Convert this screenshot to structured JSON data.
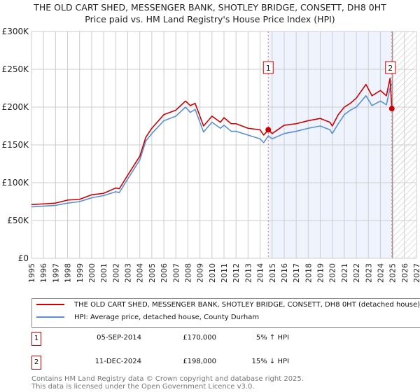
{
  "title_line1": "THE OLD CART SHED, MESSENGER BANK, SHOTLEY BRIDGE, CONSETT, DH8 0HT",
  "title_line2": "Price paid vs. HM Land Registry's House Price Index (HPI)",
  "chart_data": {
    "type": "line",
    "title": "THE OLD CART SHED, MESSENGER BANK, SHOTLEY BRIDGE, CONSETT, DH8 0HT - Price paid vs. HM Land Registry's House Price Index (HPI)",
    "xlim": [
      1995,
      2027
    ],
    "ylim": [
      0,
      300000
    ],
    "grid": true,
    "y_ticks": [
      0,
      50000,
      100000,
      150000,
      200000,
      250000,
      300000
    ],
    "y_tick_labels": [
      "£0",
      "£50K",
      "£100K",
      "£150K",
      "£200K",
      "£250K",
      "£300K"
    ],
    "x_ticks": [
      1995,
      1996,
      1997,
      1998,
      1999,
      2000,
      2001,
      2002,
      2003,
      2004,
      2005,
      2006,
      2007,
      2008,
      2009,
      2010,
      2011,
      2012,
      2013,
      2014,
      2015,
      2016,
      2017,
      2018,
      2019,
      2020,
      2021,
      2022,
      2023,
      2024,
      2025,
      2026,
      2027
    ],
    "x_tick_labels": [
      "1995",
      "1996",
      "1997",
      "1998",
      "1999",
      "2000",
      "2001",
      "2002",
      "2003",
      "2004",
      "2005",
      "2006",
      "2007",
      "2008",
      "2009",
      "2010",
      "2011",
      "2012",
      "2013",
      "2014",
      "2015",
      "2016",
      "2017",
      "2018",
      "2019",
      "2020",
      "2021",
      "2022",
      "2023",
      "2024",
      "2025",
      "2026",
      "2027"
    ],
    "series": [
      {
        "name": "THE OLD CART SHED, MESSENGER BANK, SHOTLEY BRIDGE, CONSETT, DH8 0HT (detached house)",
        "color": "#cc0000",
        "x": [
          1995,
          1996,
          1997,
          1998,
          1999,
          2000,
          2001,
          2002,
          2002.3,
          2003,
          2004,
          2004.5,
          2005,
          2006,
          2007,
          2007.8,
          2008.2,
          2008.6,
          2009.3,
          2010,
          2010.7,
          2011,
          2011.6,
          2012,
          2013,
          2014,
          2014.3,
          2014.68,
          2015,
          2016,
          2017,
          2018,
          2019,
          2019.8,
          2020,
          2020.5,
          2021,
          2021.5,
          2022,
          2022.8,
          2023.3,
          2024,
          2024.5,
          2024.8,
          2024.95
        ],
        "y": [
          71000,
          72000,
          73000,
          77000,
          78000,
          84000,
          86000,
          93000,
          92000,
          110000,
          135000,
          160000,
          172000,
          190000,
          196000,
          208000,
          202000,
          205000,
          175000,
          188000,
          180000,
          186000,
          178000,
          178000,
          172000,
          170000,
          163000,
          170000,
          165000,
          176000,
          178000,
          182000,
          185000,
          180000,
          175000,
          190000,
          200000,
          205000,
          212000,
          230000,
          215000,
          222000,
          215000,
          238000,
          198000
        ]
      },
      {
        "name": "HPI: Average price, detached house, County Durham",
        "color": "#5b8fd4",
        "x": [
          1995,
          1996,
          1997,
          1998,
          1999,
          2000,
          2001,
          2002,
          2002.3,
          2003,
          2004,
          2004.5,
          2005,
          2006,
          2007,
          2007.8,
          2008.2,
          2008.6,
          2009.3,
          2010,
          2010.7,
          2011,
          2011.6,
          2012,
          2013,
          2014,
          2014.3,
          2014.68,
          2015,
          2016,
          2017,
          2018,
          2019,
          2019.8,
          2020,
          2020.5,
          2021,
          2021.5,
          2022,
          2022.8,
          2023.3,
          2024,
          2024.5,
          2024.8,
          2025
        ],
        "y": [
          68000,
          69000,
          70000,
          73000,
          75000,
          80000,
          83000,
          88000,
          87000,
          105000,
          130000,
          155000,
          165000,
          182000,
          188000,
          200000,
          193000,
          197000,
          167000,
          180000,
          172000,
          176000,
          168000,
          168000,
          163000,
          158000,
          153000,
          162000,
          158000,
          165000,
          168000,
          172000,
          175000,
          170000,
          165000,
          178000,
          190000,
          196000,
          200000,
          215000,
          202000,
          208000,
          203000,
          225000,
          232000
        ]
      }
    ],
    "sales": [
      {
        "label": "1",
        "x": 2014.68,
        "price": 170000
      },
      {
        "label": "2",
        "x": 2024.95,
        "price": 198000
      }
    ],
    "shaded_region": [
      2014.68,
      2024.95
    ],
    "hatched_region": [
      2025,
      2027
    ],
    "legend_position": "below"
  },
  "legend": {
    "property": "THE OLD CART SHED, MESSENGER BANK, SHOTLEY BRIDGE, CONSETT, DH8 0HT (detached house)",
    "hpi": "HPI: Average price, detached house, County Durham"
  },
  "sales_table": [
    {
      "num": "1",
      "date": "05-SEP-2014",
      "price": "£170,000",
      "hpi": "5% ↑ HPI"
    },
    {
      "num": "2",
      "date": "11-DEC-2024",
      "price": "£198,000",
      "hpi": "15% ↓ HPI"
    }
  ],
  "footer_line1": "Contains HM Land Registry data © Crown copyright and database right 2025.",
  "footer_line2": "This data is licensed under the Open Government Licence v3.0."
}
